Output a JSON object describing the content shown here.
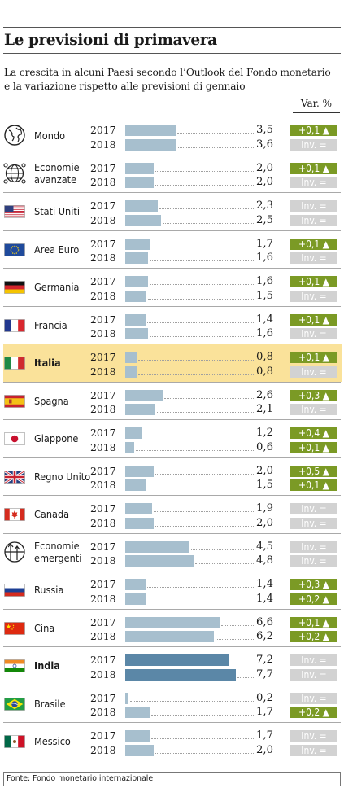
{
  "title": "Le previsioni di primavera",
  "subtitle": [
    "La crescita in alcuni Paesi secondo l’Outlook del Fondo monetario",
    "e la variazione rispetto alle previsioni di gennaio"
  ],
  "variation_header": "Var. %",
  "source": "Fonte: Fondo monetario internazionale",
  "colors": {
    "bar": "#a7bfce",
    "bar_india": "#5b87a7",
    "increase": "#7b9a25",
    "unchanged": "#d2d2d2",
    "highlight": "#fae29a"
  },
  "chart_data": {
    "type": "bar",
    "orientation": "horizontal",
    "title": "Le previsioni di primavera",
    "years": [
      "2017",
      "2018"
    ],
    "categories": [
      {
        "name": [
          "Mondo"
        ],
        "icon": "globe-icon",
        "values": [
          {
            "year": "2017",
            "growth": 3.5,
            "value_label": "3,5",
            "variation": "+0,1 ▲",
            "change": "up"
          },
          {
            "year": "2018",
            "growth": 3.6,
            "value_label": "3,6",
            "variation": "Inv. =",
            "change": "unchanged"
          }
        ]
      },
      {
        "name": [
          "Economie",
          "avanzate"
        ],
        "icon": "globe-network-icon",
        "values": [
          {
            "year": "2017",
            "growth": 2.0,
            "value_label": "2,0",
            "variation": "+0,1 ▲",
            "change": "up"
          },
          {
            "year": "2018",
            "growth": 2.0,
            "value_label": "2,0",
            "variation": "Inv. =",
            "change": "unchanged"
          }
        ]
      },
      {
        "name": [
          "Stati Uniti"
        ],
        "icon": "flag-usa-icon",
        "values": [
          {
            "year": "2017",
            "growth": 2.3,
            "value_label": "2,3",
            "variation": "Inv. =",
            "change": "unchanged"
          },
          {
            "year": "2018",
            "growth": 2.5,
            "value_label": "2,5",
            "variation": "Inv. =",
            "change": "unchanged"
          }
        ]
      },
      {
        "name": [
          "Area Euro"
        ],
        "icon": "flag-eu-icon",
        "values": [
          {
            "year": "2017",
            "growth": 1.7,
            "value_label": "1,7",
            "variation": "+0,1 ▲",
            "change": "up"
          },
          {
            "year": "2018",
            "growth": 1.6,
            "value_label": "1,6",
            "variation": "Inv. =",
            "change": "unchanged"
          }
        ]
      },
      {
        "name": [
          "Germania"
        ],
        "icon": "flag-germany-icon",
        "values": [
          {
            "year": "2017",
            "growth": 1.6,
            "value_label": "1,6",
            "variation": "+0,1 ▲",
            "change": "up"
          },
          {
            "year": "2018",
            "growth": 1.5,
            "value_label": "1,5",
            "variation": "Inv. =",
            "change": "unchanged"
          }
        ]
      },
      {
        "name": [
          "Francia"
        ],
        "icon": "flag-france-icon",
        "values": [
          {
            "year": "2017",
            "growth": 1.4,
            "value_label": "1,4",
            "variation": "+0,1 ▲",
            "change": "up"
          },
          {
            "year": "2018",
            "growth": 1.6,
            "value_label": "1,6",
            "variation": "Inv. =",
            "change": "unchanged"
          }
        ]
      },
      {
        "name": [
          "Italia"
        ],
        "icon": "flag-italy-icon",
        "highlight": true,
        "values": [
          {
            "year": "2017",
            "growth": 0.8,
            "value_label": "0,8",
            "variation": "+0,1 ▲",
            "change": "up"
          },
          {
            "year": "2018",
            "growth": 0.8,
            "value_label": "0,8",
            "variation": "Inv. =",
            "change": "unchanged"
          }
        ]
      },
      {
        "name": [
          "Spagna"
        ],
        "icon": "flag-spain-icon",
        "values": [
          {
            "year": "2017",
            "growth": 2.6,
            "value_label": "2,6",
            "variation": "+0,3 ▲",
            "change": "up"
          },
          {
            "year": "2018",
            "growth": 2.1,
            "value_label": "2,1",
            "variation": "Inv. =",
            "change": "unchanged"
          }
        ]
      },
      {
        "name": [
          "Giappone"
        ],
        "icon": "flag-japan-icon",
        "values": [
          {
            "year": "2017",
            "growth": 1.2,
            "value_label": "1,2",
            "variation": "+0,4 ▲",
            "change": "up"
          },
          {
            "year": "2018",
            "growth": 0.6,
            "value_label": "0,6",
            "variation": "+0,1 ▲",
            "change": "up"
          }
        ]
      },
      {
        "name": [
          "Regno Unito"
        ],
        "icon": "flag-uk-icon",
        "values": [
          {
            "year": "2017",
            "growth": 2.0,
            "value_label": "2,0",
            "variation": "+0,5 ▲",
            "change": "up"
          },
          {
            "year": "2018",
            "growth": 1.5,
            "value_label": "1,5",
            "variation": "+0,1 ▲",
            "change": "up"
          }
        ]
      },
      {
        "name": [
          "Canada"
        ],
        "icon": "flag-canada-icon",
        "values": [
          {
            "year": "2017",
            "growth": 1.9,
            "value_label": "1,9",
            "variation": "Inv. =",
            "change": "unchanged"
          },
          {
            "year": "2018",
            "growth": 2.0,
            "value_label": "2,0",
            "variation": "Inv. =",
            "change": "unchanged"
          }
        ]
      },
      {
        "name": [
          "Economie",
          "emergenti"
        ],
        "icon": "globe-arrows-icon",
        "values": [
          {
            "year": "2017",
            "growth": 4.5,
            "value_label": "4,5",
            "variation": "Inv. =",
            "change": "unchanged"
          },
          {
            "year": "2018",
            "growth": 4.8,
            "value_label": "4,8",
            "variation": "Inv. =",
            "change": "unchanged"
          }
        ]
      },
      {
        "name": [
          "Russia"
        ],
        "icon": "flag-russia-icon",
        "values": [
          {
            "year": "2017",
            "growth": 1.4,
            "value_label": "1,4",
            "variation": "+0,3 ▲",
            "change": "up"
          },
          {
            "year": "2018",
            "growth": 1.4,
            "value_label": "1,4",
            "variation": "+0,2 ▲",
            "change": "up"
          }
        ]
      },
      {
        "name": [
          "Cina"
        ],
        "icon": "flag-china-icon",
        "values": [
          {
            "year": "2017",
            "growth": 6.6,
            "value_label": "6,6",
            "variation": "+0,1 ▲",
            "change": "up"
          },
          {
            "year": "2018",
            "growth": 6.2,
            "value_label": "6,2",
            "variation": "+0,2 ▲",
            "change": "up"
          }
        ]
      },
      {
        "name": [
          "India"
        ],
        "icon": "flag-india-icon",
        "bold": true,
        "dark_bars": true,
        "values": [
          {
            "year": "2017",
            "growth": 7.2,
            "value_label": "7,2",
            "variation": "Inv. =",
            "change": "unchanged"
          },
          {
            "year": "2018",
            "growth": 7.7,
            "value_label": "7,7",
            "variation": "Inv. =",
            "change": "unchanged"
          }
        ]
      },
      {
        "name": [
          "Brasile"
        ],
        "icon": "flag-brazil-icon",
        "values": [
          {
            "year": "2017",
            "growth": 0.2,
            "value_label": "0,2",
            "variation": "Inv. =",
            "change": "unchanged"
          },
          {
            "year": "2018",
            "growth": 1.7,
            "value_label": "1,7",
            "variation": "+0,2 ▲",
            "change": "up"
          }
        ]
      },
      {
        "name": [
          "Messico"
        ],
        "icon": "flag-mexico-icon",
        "values": [
          {
            "year": "2017",
            "growth": 1.7,
            "value_label": "1,7",
            "variation": "Inv. =",
            "change": "unchanged"
          },
          {
            "year": "2018",
            "growth": 2.0,
            "value_label": "2,0",
            "variation": "Inv. =",
            "change": "unchanged"
          }
        ]
      }
    ],
    "xlim": [
      0,
      7.7
    ],
    "grid": false,
    "legend": "none"
  }
}
